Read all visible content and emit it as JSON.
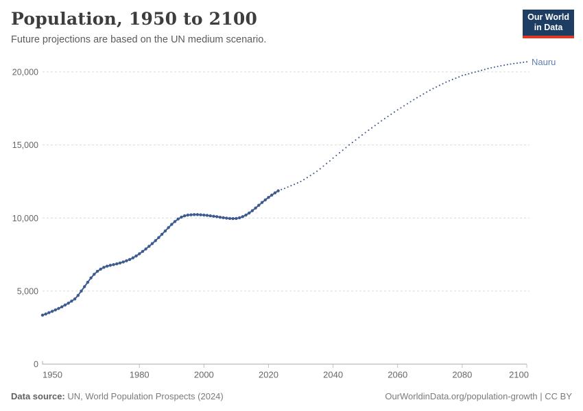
{
  "header": {
    "title": "Population, 1950 to 2100",
    "subtitle": "Future projections are based on the UN medium scenario.",
    "logo": {
      "line1": "Our World",
      "line2": "in Data",
      "bg": "#1d3d63",
      "accent": "#dc3a23",
      "text_color": "#ffffff"
    }
  },
  "footer": {
    "source_label": "Data source:",
    "source_text": " UN, World Population Prospects (2024)",
    "credit": "OurWorldinData.org/population-growth | CC BY"
  },
  "chart_data": {
    "type": "line",
    "title": "Population, 1950 to 2100",
    "entity": "Nauru",
    "xlabel": "",
    "ylabel": "",
    "x_range": [
      1950,
      2100
    ],
    "ylim": [
      0,
      20000
    ],
    "x_ticks": [
      1950,
      1980,
      2000,
      2020,
      2040,
      2060,
      2080,
      2100
    ],
    "y_ticks": [
      0,
      5000,
      10000,
      15000,
      20000
    ],
    "grid": "horizontal-dashed",
    "legend_position": "end-of-line-label",
    "end_label": "Nauru",
    "end_label_color": "#5e7cb2",
    "series": [
      {
        "name": "Nauru (historical estimates)",
        "style": "solid-with-markers",
        "color": "#3d5b8e",
        "start_year": 1950,
        "values": [
          3350,
          3430,
          3520,
          3610,
          3710,
          3810,
          3920,
          4040,
          4170,
          4310,
          4460,
          4700,
          5000,
          5300,
          5600,
          5900,
          6150,
          6350,
          6500,
          6620,
          6700,
          6760,
          6810,
          6860,
          6920,
          6990,
          7070,
          7160,
          7270,
          7400,
          7550,
          7710,
          7880,
          8060,
          8250,
          8450,
          8660,
          8880,
          9110,
          9340,
          9560,
          9760,
          9930,
          10060,
          10150,
          10200,
          10220,
          10230,
          10230,
          10220,
          10200,
          10180,
          10150,
          10120,
          10090,
          10050,
          10020,
          9990,
          9970,
          9960,
          9970,
          10010,
          10090,
          10200,
          10340,
          10500,
          10680,
          10870,
          11060,
          11240,
          11410,
          11570,
          11720,
          11860
        ]
      },
      {
        "name": "Nauru (UN medium scenario projection)",
        "style": "dotted",
        "color": "#3d5b8e",
        "start_year": 2024,
        "values": [
          11950,
          12030,
          12120,
          12210,
          12300,
          12400,
          12500,
          12630,
          12770,
          12910,
          13050,
          13200,
          13370,
          13550,
          13730,
          13910,
          14100,
          14280,
          14460,
          14640,
          14820,
          15000,
          15170,
          15340,
          15510,
          15680,
          15850,
          16010,
          16170,
          16330,
          16490,
          16650,
          16800,
          16950,
          17100,
          17250,
          17400,
          17540,
          17680,
          17820,
          17960,
          18100,
          18230,
          18360,
          18490,
          18620,
          18750,
          18860,
          18970,
          19080,
          19190,
          19300,
          19390,
          19480,
          19570,
          19660,
          19750,
          19810,
          19870,
          19930,
          19990,
          20050,
          20110,
          20170,
          20230,
          20280,
          20330,
          20380,
          20420,
          20460,
          20500,
          20540,
          20570,
          20600,
          20630,
          20660,
          20690
        ]
      }
    ]
  }
}
